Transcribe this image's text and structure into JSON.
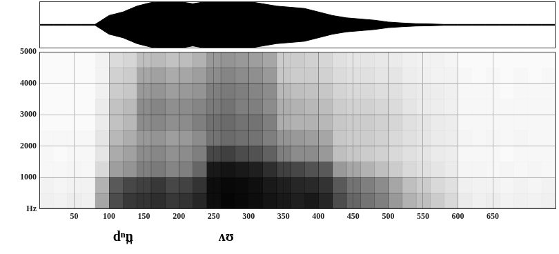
{
  "chart_data": [
    {
      "type": "line",
      "x": [
        0,
        20,
        40,
        60,
        80,
        100,
        120,
        140,
        160,
        180,
        200,
        220,
        240,
        260,
        280,
        300,
        320,
        340,
        360,
        380,
        400,
        420,
        440,
        460,
        480,
        500,
        520,
        540,
        560,
        580,
        600,
        620,
        640,
        660,
        680,
        700,
        720,
        740
      ],
      "values": [
        0.02,
        0.02,
        0.02,
        0.02,
        0.02,
        0.4,
        0.55,
        0.8,
        0.95,
        1.0,
        1.0,
        0.9,
        1.0,
        1.0,
        1.0,
        1.0,
        0.9,
        0.8,
        0.75,
        0.7,
        0.55,
        0.4,
        0.3,
        0.25,
        0.2,
        0.12,
        0.08,
        0.05,
        0.04,
        0.02,
        0.02,
        0.02,
        0.02,
        0.02,
        0.02,
        0.02,
        0.02,
        0.02
      ],
      "lower": [
        -0.02,
        -0.02,
        -0.02,
        -0.02,
        -0.02,
        -0.4,
        -0.55,
        -0.8,
        -0.95,
        -1.0,
        -1.0,
        -0.9,
        -1.0,
        -1.0,
        -1.0,
        -1.0,
        -0.9,
        -0.8,
        -0.75,
        -0.7,
        -0.55,
        -0.4,
        -0.3,
        -0.25,
        -0.2,
        -0.12,
        -0.08,
        -0.05,
        -0.04,
        -0.02,
        -0.02,
        -0.02,
        -0.02,
        -0.02,
        -0.02,
        -0.02,
        -0.02,
        -0.02
      ],
      "color": "#000000",
      "xlim": [
        0,
        740
      ],
      "ylim": [
        -1,
        1
      ],
      "tick_labels": false,
      "grid": false
    },
    {
      "type": "heatmap",
      "time_bins": [
        0,
        20,
        40,
        60,
        80,
        100,
        120,
        140,
        160,
        180,
        200,
        220,
        240,
        260,
        280,
        300,
        320,
        340,
        360,
        380,
        400,
        420,
        440,
        460,
        480,
        500,
        520,
        540,
        560,
        580,
        600,
        620,
        640,
        660,
        680,
        700,
        720,
        740
      ],
      "freq_bins": [
        0,
        500,
        1000,
        1500,
        2000,
        2500,
        3000,
        3500,
        4000,
        4500,
        5000
      ],
      "cells": [
        [
          0.06,
          0.05,
          0.07,
          0.06,
          0.35,
          0.7,
          0.78,
          0.8,
          0.82,
          0.78,
          0.8,
          0.85,
          0.95,
          0.98,
          0.97,
          0.95,
          0.92,
          0.9,
          0.88,
          0.9,
          0.85,
          0.7,
          0.6,
          0.55,
          0.5,
          0.4,
          0.3,
          0.25,
          0.2,
          0.15,
          0.08,
          0.06,
          0.07,
          0.05,
          0.06,
          0.05,
          0.06
        ],
        [
          0.05,
          0.04,
          0.05,
          0.05,
          0.3,
          0.65,
          0.72,
          0.75,
          0.78,
          0.72,
          0.74,
          0.8,
          0.95,
          0.97,
          0.96,
          0.94,
          0.9,
          0.88,
          0.85,
          0.84,
          0.8,
          0.65,
          0.55,
          0.5,
          0.45,
          0.35,
          0.25,
          0.2,
          0.15,
          0.12,
          0.06,
          0.05,
          0.05,
          0.04,
          0.05,
          0.04,
          0.05
        ],
        [
          0.03,
          0.03,
          0.04,
          0.03,
          0.15,
          0.38,
          0.42,
          0.5,
          0.52,
          0.48,
          0.5,
          0.6,
          0.9,
          0.92,
          0.9,
          0.88,
          0.82,
          0.75,
          0.72,
          0.68,
          0.65,
          0.4,
          0.35,
          0.3,
          0.25,
          0.2,
          0.15,
          0.12,
          0.1,
          0.08,
          0.04,
          0.04,
          0.03,
          0.04,
          0.03,
          0.04,
          0.03
        ],
        [
          0.03,
          0.02,
          0.03,
          0.03,
          0.1,
          0.33,
          0.37,
          0.45,
          0.47,
          0.43,
          0.45,
          0.5,
          0.72,
          0.75,
          0.7,
          0.68,
          0.62,
          0.5,
          0.45,
          0.45,
          0.4,
          0.25,
          0.22,
          0.2,
          0.18,
          0.15,
          0.12,
          0.1,
          0.08,
          0.07,
          0.03,
          0.03,
          0.03,
          0.02,
          0.03,
          0.03,
          0.03
        ],
        [
          0.03,
          0.03,
          0.03,
          0.03,
          0.1,
          0.28,
          0.32,
          0.4,
          0.42,
          0.38,
          0.4,
          0.45,
          0.55,
          0.58,
          0.56,
          0.55,
          0.5,
          0.42,
          0.4,
          0.38,
          0.35,
          0.22,
          0.2,
          0.2,
          0.18,
          0.15,
          0.12,
          0.1,
          0.08,
          0.07,
          0.04,
          0.03,
          0.04,
          0.03,
          0.04,
          0.03,
          0.03
        ],
        [
          0.02,
          0.02,
          0.02,
          0.02,
          0.08,
          0.24,
          0.28,
          0.45,
          0.47,
          0.44,
          0.45,
          0.5,
          0.56,
          0.58,
          0.55,
          0.55,
          0.5,
          0.32,
          0.3,
          0.3,
          0.28,
          0.22,
          0.2,
          0.2,
          0.18,
          0.16,
          0.12,
          0.1,
          0.08,
          0.07,
          0.03,
          0.03,
          0.03,
          0.03,
          0.03,
          0.03,
          0.03
        ],
        [
          0.02,
          0.02,
          0.02,
          0.02,
          0.08,
          0.24,
          0.27,
          0.45,
          0.48,
          0.44,
          0.45,
          0.48,
          0.52,
          0.55,
          0.5,
          0.5,
          0.45,
          0.32,
          0.3,
          0.28,
          0.26,
          0.2,
          0.18,
          0.18,
          0.16,
          0.14,
          0.1,
          0.08,
          0.07,
          0.06,
          0.03,
          0.03,
          0.03,
          0.03,
          0.03,
          0.03,
          0.03
        ],
        [
          0.02,
          0.02,
          0.02,
          0.02,
          0.06,
          0.2,
          0.22,
          0.4,
          0.42,
          0.38,
          0.4,
          0.42,
          0.5,
          0.52,
          0.5,
          0.48,
          0.45,
          0.28,
          0.25,
          0.24,
          0.22,
          0.17,
          0.15,
          0.15,
          0.13,
          0.12,
          0.09,
          0.08,
          0.07,
          0.06,
          0.03,
          0.03,
          0.03,
          0.02,
          0.03,
          0.03,
          0.03
        ],
        [
          0.02,
          0.02,
          0.02,
          0.02,
          0.05,
          0.18,
          0.2,
          0.35,
          0.37,
          0.33,
          0.35,
          0.38,
          0.45,
          0.48,
          0.45,
          0.44,
          0.4,
          0.22,
          0.2,
          0.2,
          0.18,
          0.14,
          0.12,
          0.12,
          0.1,
          0.1,
          0.07,
          0.06,
          0.05,
          0.05,
          0.03,
          0.02,
          0.03,
          0.02,
          0.03,
          0.02,
          0.03
        ],
        [
          0.02,
          0.02,
          0.02,
          0.02,
          0.05,
          0.14,
          0.16,
          0.25,
          0.27,
          0.24,
          0.26,
          0.3,
          0.4,
          0.42,
          0.4,
          0.38,
          0.35,
          0.2,
          0.2,
          0.18,
          0.16,
          0.12,
          0.1,
          0.1,
          0.09,
          0.08,
          0.06,
          0.05,
          0.05,
          0.04,
          0.02,
          0.02,
          0.02,
          0.02,
          0.02,
          0.02,
          0.02
        ]
      ],
      "color": "#000000",
      "xlim": [
        0,
        740
      ],
      "xticks": [
        50,
        100,
        150,
        200,
        250,
        300,
        350,
        400,
        450,
        500,
        550,
        600,
        650
      ],
      "ylim": [
        0,
        5000
      ],
      "yticks": [
        {
          "value": 0,
          "label": "Hz"
        },
        1000,
        2000,
        3000,
        4000,
        5000
      ],
      "grid": true,
      "annotations": [
        {
          "text": "dⁿn̪",
          "x": 120
        },
        {
          "text": "ʌʊ",
          "x": 268
        }
      ]
    }
  ]
}
